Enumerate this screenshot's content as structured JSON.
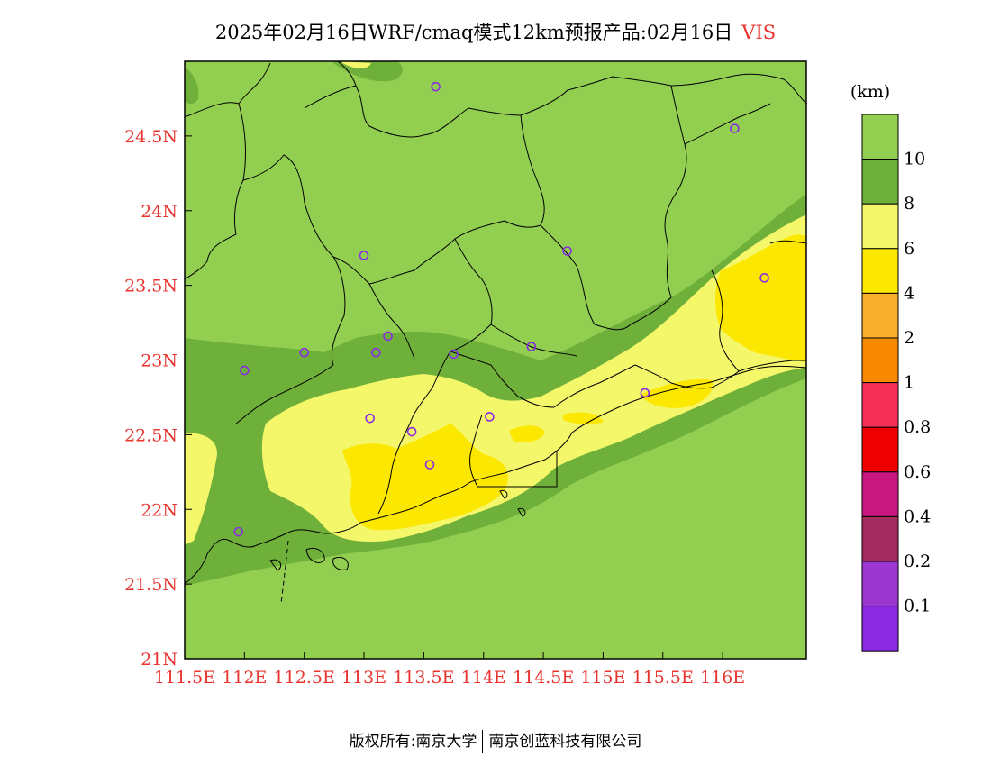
{
  "title": {
    "main": "2025年02月16日WRF/cmaq模式12km预报产品:02月16日",
    "variable": "VIS",
    "unit": "(km)"
  },
  "footer": {
    "left": "版权所有:南京大学",
    "right": "南京创蓝科技有限公司"
  },
  "colors": {
    "gt10": "#92cf50",
    "c8_10": "#6fb03a",
    "c6_8": "#f5f76a",
    "c4_6": "#fce700",
    "c2_4": "#f9af2b",
    "c1_2": "#f98a00",
    "c08_1": "#f5315a",
    "c06_08": "#ee0000",
    "c04_06": "#c8177f",
    "c02_04": "#a32b5d",
    "c01_02": "#9b36d0",
    "lt01": "#8a2be2",
    "axis_label": "#e8332e",
    "station_marker": "#8a2be2"
  },
  "colorbar": {
    "labels": [
      "10",
      "8",
      "6",
      "4",
      "2",
      "1",
      "0.8",
      "0.6",
      "0.4",
      "0.2",
      "0.1"
    ]
  },
  "axes": {
    "x_ticks": [
      "111.5E",
      "112E",
      "112.5E",
      "113E",
      "113.5E",
      "114E",
      "114.5E",
      "115E",
      "115.5E",
      "116E"
    ],
    "y_ticks": [
      "24.5N",
      "24N",
      "23.5N",
      "23N",
      "22.5N",
      "22N",
      "21.5N",
      "21N"
    ]
  },
  "map_data": {
    "type": "filled-contour-map",
    "region": "Guangdong coast",
    "lon_range": [
      111.5,
      116.7
    ],
    "lat_range": [
      21.0,
      25.0
    ],
    "stations": [
      {
        "lon": 113.6,
        "lat": 24.83
      },
      {
        "lon": 116.1,
        "lat": 24.55
      },
      {
        "lon": 113.0,
        "lat": 23.7
      },
      {
        "lon": 114.7,
        "lat": 23.73
      },
      {
        "lon": 116.35,
        "lat": 23.55
      },
      {
        "lon": 113.2,
        "lat": 23.16
      },
      {
        "lon": 112.5,
        "lat": 23.05
      },
      {
        "lon": 113.1,
        "lat": 23.05
      },
      {
        "lon": 113.75,
        "lat": 23.04
      },
      {
        "lon": 114.4,
        "lat": 23.09
      },
      {
        "lon": 112.0,
        "lat": 22.93
      },
      {
        "lon": 115.35,
        "lat": 22.78
      },
      {
        "lon": 113.05,
        "lat": 22.61
      },
      {
        "lon": 114.05,
        "lat": 22.62
      },
      {
        "lon": 113.4,
        "lat": 22.52
      },
      {
        "lon": 113.55,
        "lat": 22.3
      },
      {
        "lon": 111.95,
        "lat": 21.85
      }
    ]
  }
}
